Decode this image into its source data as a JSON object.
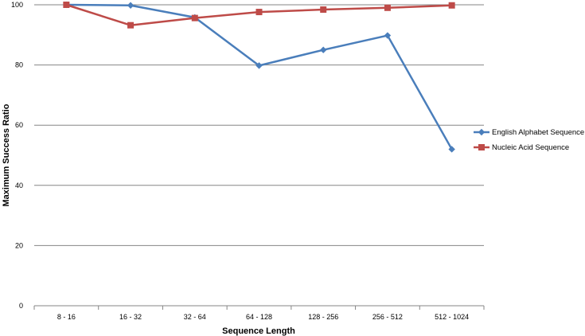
{
  "chart_data": {
    "type": "line",
    "xlabel": "Sequence Length",
    "ylabel": "Maximum Success Ratio",
    "ylim": [
      0,
      100
    ],
    "yticks": [
      0,
      20,
      40,
      60,
      80,
      100
    ],
    "grid": true,
    "legend_position": "right",
    "categories": [
      "8 - 16",
      "16 - 32",
      "32 - 64",
      "64 - 128",
      "128 - 256",
      "256 - 512",
      "512 - 1024"
    ],
    "series": [
      {
        "name": "English Alphabet Sequence",
        "color": "#4a7ebb",
        "marker": "diamond",
        "values": [
          100,
          99.8,
          95.8,
          79.8,
          85,
          89.8,
          52
        ]
      },
      {
        "name": "Nucleic Acid Sequence",
        "color": "#be4b48",
        "marker": "square",
        "values": [
          100,
          93.2,
          95.6,
          97.6,
          98.4,
          99,
          99.8
        ]
      }
    ]
  }
}
